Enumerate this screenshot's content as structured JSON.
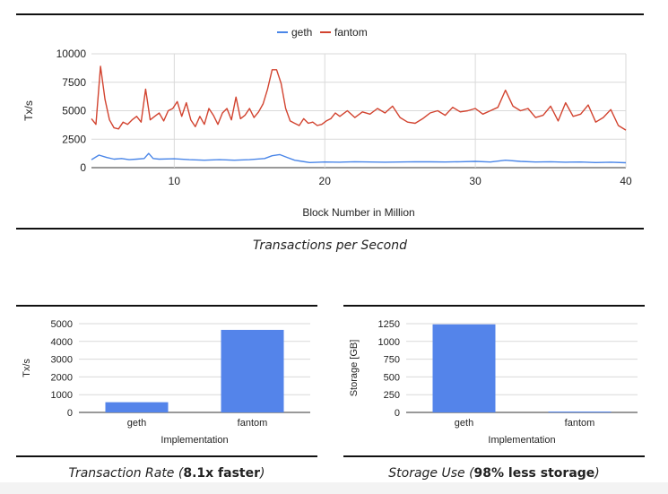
{
  "colors": {
    "geth": "#4a86e8",
    "fantom": "#d2432f",
    "bar": "#5484ea",
    "grid": "#d9d9d9",
    "axis": "#333333"
  },
  "captions": {
    "main": "Transactions per Second",
    "rate_prefix": "Transaction Rate (",
    "rate_bold": "8.1x faster",
    "rate_suffix": ")",
    "storage_prefix": "Storage Use (",
    "storage_bold": "98% less storage",
    "storage_suffix": ")"
  },
  "chart_data": [
    {
      "type": "line",
      "title": "",
      "xlabel": "Block Number in Million",
      "ylabel": "Tx/s",
      "xlim": [
        4.5,
        40
      ],
      "ylim": [
        0,
        10000
      ],
      "xticks": [
        10,
        20,
        30,
        40
      ],
      "yticks": [
        0,
        2500,
        5000,
        7500,
        10000
      ],
      "ytick_labels": [
        "0",
        "2500",
        "5000",
        "7500",
        "10000"
      ],
      "grid": true,
      "legend": "top-center",
      "series": [
        {
          "name": "geth",
          "color": "#4a86e8",
          "x": [
            4.5,
            5,
            5.5,
            6,
            6.5,
            7,
            7.5,
            8,
            8.3,
            8.6,
            9,
            10,
            11,
            12,
            13,
            14,
            15,
            16,
            16.5,
            17,
            17.5,
            18,
            18.5,
            19,
            20,
            21,
            22,
            23,
            24,
            25,
            26,
            27,
            28,
            29,
            30,
            31,
            32,
            33,
            34,
            35,
            36,
            37,
            38,
            39,
            40
          ],
          "y": [
            700,
            1100,
            900,
            750,
            800,
            700,
            750,
            800,
            1250,
            800,
            750,
            780,
            700,
            650,
            700,
            650,
            700,
            800,
            1050,
            1150,
            900,
            650,
            550,
            450,
            500,
            480,
            520,
            500,
            480,
            500,
            520,
            510,
            500,
            520,
            550,
            500,
            650,
            550,
            500,
            520,
            480,
            500,
            450,
            480,
            430
          ]
        },
        {
          "name": "fantom",
          "color": "#d2432f",
          "x": [
            4.5,
            4.8,
            5.1,
            5.4,
            5.7,
            6,
            6.3,
            6.6,
            6.9,
            7.2,
            7.5,
            7.8,
            8.1,
            8.4,
            8.7,
            9,
            9.3,
            9.6,
            9.9,
            10.2,
            10.5,
            10.8,
            11.1,
            11.4,
            11.7,
            12,
            12.3,
            12.6,
            12.9,
            13.2,
            13.5,
            13.8,
            14.1,
            14.4,
            14.7,
            15,
            15.3,
            15.6,
            15.9,
            16.2,
            16.5,
            16.8,
            17.1,
            17.4,
            17.7,
            18,
            18.3,
            18.6,
            18.9,
            19.2,
            19.5,
            19.8,
            20.1,
            20.4,
            20.7,
            21,
            21.5,
            22,
            22.5,
            23,
            23.5,
            24,
            24.5,
            25,
            25.5,
            26,
            26.5,
            27,
            27.5,
            28,
            28.5,
            29,
            29.5,
            30,
            30.5,
            31,
            31.5,
            32,
            32.5,
            33,
            33.5,
            34,
            34.5,
            35,
            35.5,
            36,
            36.5,
            37,
            37.5,
            38,
            38.5,
            39,
            39.5,
            40
          ],
          "y": [
            4300,
            3800,
            8900,
            6000,
            4200,
            3500,
            3400,
            4000,
            3800,
            4200,
            4500,
            4000,
            6900,
            4200,
            4500,
            4800,
            4100,
            5000,
            5200,
            5800,
            4500,
            5700,
            4200,
            3600,
            4500,
            3800,
            5200,
            4600,
            3800,
            4800,
            5200,
            4200,
            6200,
            4300,
            4600,
            5200,
            4400,
            4900,
            5600,
            6900,
            8600,
            8600,
            7400,
            5200,
            4100,
            3900,
            3700,
            4300,
            3900,
            4000,
            3700,
            3800,
            4100,
            4300,
            4800,
            4500,
            5000,
            4400,
            4900,
            4700,
            5200,
            4800,
            5400,
            4400,
            4000,
            3900,
            4300,
            4800,
            5000,
            4600,
            5300,
            4900,
            5000,
            5200,
            4700,
            5000,
            5300,
            6800,
            5400,
            5000,
            5200,
            4400,
            4600,
            5400,
            4100,
            5700,
            4500,
            4700,
            5500,
            4000,
            4400,
            5100,
            3700,
            3300
          ]
        }
      ]
    },
    {
      "type": "bar",
      "title": "",
      "xlabel": "Implementation",
      "ylabel": "Tx/s",
      "categories": [
        "geth",
        "fantom"
      ],
      "values": [
        575,
        4650
      ],
      "ylim": [
        0,
        5000
      ],
      "yticks": [
        0,
        1000,
        2000,
        3000,
        4000,
        5000
      ],
      "ytick_labels": [
        "0",
        "1000",
        "2000",
        "3000",
        "4000",
        "5000"
      ],
      "grid": true
    },
    {
      "type": "bar",
      "title": "",
      "xlabel": "Implementation",
      "ylabel": "Storage [GB]",
      "categories": [
        "geth",
        "fantom"
      ],
      "values": [
        1240,
        12
      ],
      "ylim": [
        0,
        1250
      ],
      "yticks": [
        0,
        250,
        500,
        750,
        1000,
        1250
      ],
      "ytick_labels": [
        "0",
        "250",
        "500",
        "750",
        "1000",
        "1250"
      ],
      "grid": true
    }
  ]
}
